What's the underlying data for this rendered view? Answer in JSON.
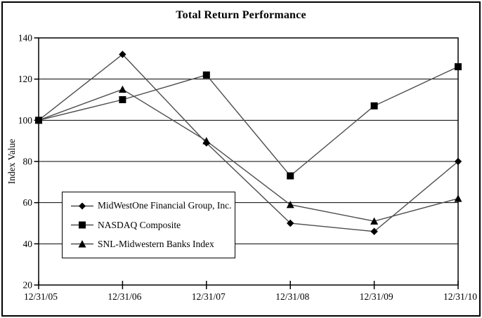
{
  "chart_data": {
    "type": "line",
    "title": "Total Return Performance",
    "ylabel": "Index Value",
    "xlabel": "",
    "categories": [
      "12/31/05",
      "12/31/06",
      "12/31/07",
      "12/31/08",
      "12/31/09",
      "12/31/10"
    ],
    "y_ticks": [
      20,
      40,
      60,
      80,
      100,
      120,
      140
    ],
    "ylim": [
      20,
      140
    ],
    "grid": "horizontal",
    "legend_position": "inside-lower-left",
    "series": [
      {
        "name": "MidWestOne Financial Group, Inc.",
        "marker": "diamond",
        "values": [
          100,
          132,
          89,
          50,
          46,
          80
        ]
      },
      {
        "name": "NASDAQ Composite",
        "marker": "square",
        "values": [
          100,
          110,
          122,
          73,
          107,
          126
        ]
      },
      {
        "name": "SNL-Midwestern Banks Index",
        "marker": "triangle",
        "values": [
          100,
          115,
          90,
          59,
          51,
          62
        ]
      }
    ],
    "colors": {
      "line": "#4d4d4d",
      "marker": "#000000",
      "grid": "#000000",
      "axis": "#000000",
      "text": "#000000",
      "background": "#ffffff",
      "border": "#000000"
    }
  }
}
